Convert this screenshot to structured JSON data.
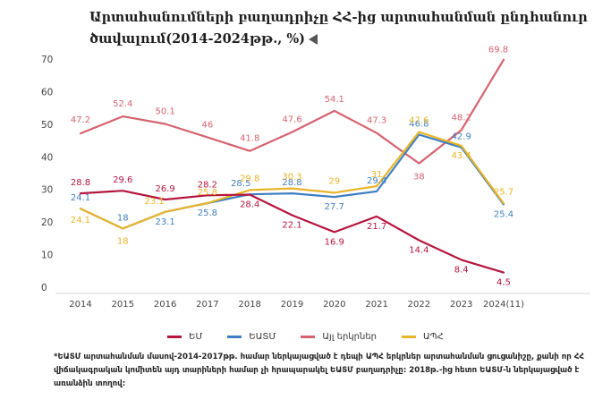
{
  "title_line1": "Արտահանումների բաղադրիչը ՀՀ-ից արտահանման ընդհանուր",
  "title_line2": "ծավալում(2014-2024թթ., %)",
  "footnote": "*ԵԱՏՄ արտահանման մասով-2014-2017թթ. համար ներկայացված է դեպի ԱՊՀ երկրներ արտահանման ցուցանիշը, քանի որ ՀՀ վիճակագրական կոմիտեն այդ տարիների համար չի հրապարակել ԵԱՏՄ բաղադրիչը: 2018թ.-ից հետո ԵԱՏՄ-ն ներկայացված է առանձին տողով:",
  "chart_data": {
    "type": "line",
    "categories": [
      "2014",
      "2015",
      "2016",
      "2017",
      "2018",
      "2019",
      "2020",
      "2021",
      "2022",
      "2023",
      "2024(11)"
    ],
    "ylim": [
      0,
      70
    ],
    "yticks": [
      0,
      10,
      20,
      30,
      40,
      50,
      60,
      70
    ],
    "grid": false,
    "legend_position": "bottom",
    "series": [
      {
        "name": "ԵՄ",
        "color": "#b5153f",
        "values": [
          28.8,
          29.6,
          26.9,
          28.2,
          28.4,
          22.1,
          16.9,
          21.7,
          14.4,
          8.4,
          4.5
        ],
        "labels": [
          "28.8",
          "29.6",
          "26.9",
          "28.2",
          "28.4",
          "22.1",
          "16.9",
          "21.7",
          "14.4",
          "8.4",
          "4.5"
        ]
      },
      {
        "name": "ԵԱՏՄ",
        "color": "#3f7fc1",
        "values": [
          24.1,
          18,
          23.1,
          25.8,
          28.5,
          28.8,
          27.7,
          29.4,
          46.8,
          42.9,
          25.4
        ],
        "labels": [
          "24.1",
          "18",
          "23.1",
          "25.8",
          "28.5",
          "28.8",
          "27.7",
          "29.4",
          "46.8",
          "42.9",
          "25.4"
        ]
      },
      {
        "name": "Այլ երկրներ",
        "color": "#d4636f",
        "values": [
          47.2,
          52.4,
          50.1,
          46,
          41.8,
          47.6,
          54.1,
          47.3,
          38,
          48.2,
          69.8
        ],
        "labels": [
          "47.2",
          "52.4",
          "50.1",
          "46",
          "41.8",
          "47.6",
          "54.1",
          "47.3",
          "38",
          "48.2",
          "69.8"
        ]
      },
      {
        "name": "ԱՊՀ",
        "color": "#e8b52a",
        "values": [
          24.1,
          18,
          23.1,
          25.8,
          29.8,
          30.3,
          29,
          31,
          47.6,
          43.4,
          25.7
        ],
        "labels": [
          "24.1",
          "18",
          "23.1",
          "25.8",
          "29.8",
          "30.3",
          "29",
          "31",
          "47.6",
          "43.4",
          "25.7"
        ]
      }
    ]
  }
}
